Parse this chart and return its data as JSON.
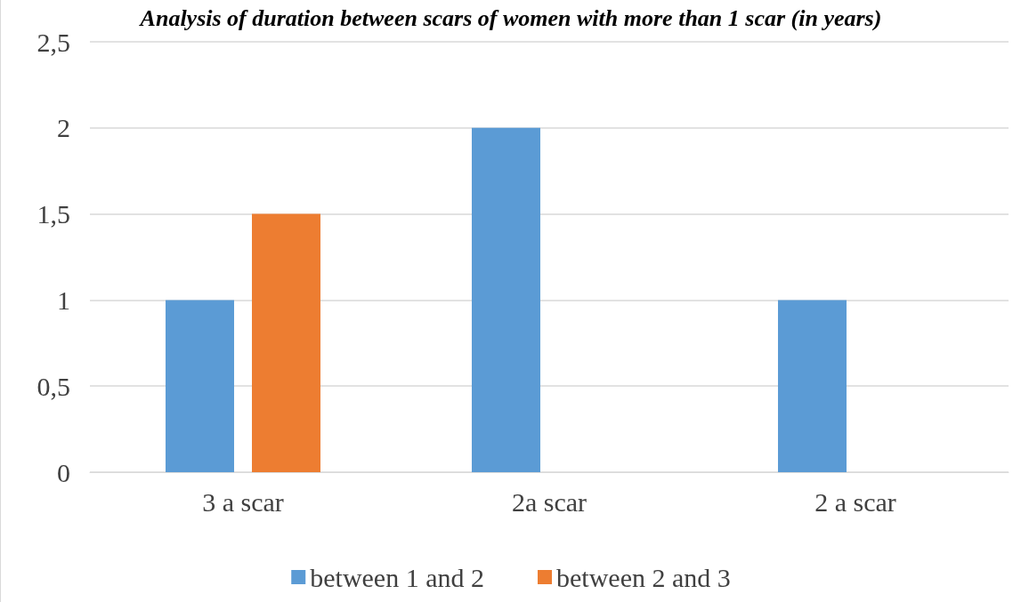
{
  "chart_data": {
    "type": "bar",
    "title": "Analysis of duration between scars of women with more than 1 scar (in years)",
    "categories": [
      "3 a scar",
      "2a scar",
      "2 a scar"
    ],
    "series": [
      {
        "name": "between 1 and 2",
        "color": "#5b9bd5",
        "values": [
          1,
          2,
          1
        ]
      },
      {
        "name": "between 2 and 3",
        "color": "#ed7d31",
        "values": [
          1.5,
          null,
          null
        ]
      }
    ],
    "ylim": [
      0,
      2.5
    ],
    "yticks": [
      0,
      {
        "value": 0.5,
        "label": "0,5"
      },
      1,
      {
        "value": 1.5,
        "label": "1,5"
      },
      2,
      {
        "value": 2.5,
        "label": "2,5"
      }
    ],
    "grid": "y",
    "legend": "bottom"
  }
}
